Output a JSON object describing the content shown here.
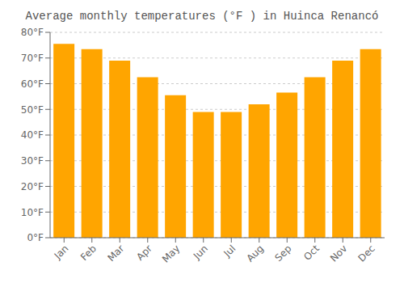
{
  "chart_data": {
    "type": "bar",
    "title": "Average monthly temperatures (°F ) in Huinca Renancó",
    "categories": [
      "Jan",
      "Feb",
      "Mar",
      "Apr",
      "May",
      "Jun",
      "Jul",
      "Aug",
      "Sep",
      "Oct",
      "Nov",
      "Dec"
    ],
    "values": [
      75.5,
      73.5,
      69.0,
      62.5,
      55.5,
      49.0,
      49.0,
      52.0,
      56.5,
      62.5,
      69.0,
      73.5
    ],
    "color": "#FFA500",
    "ylim": [
      0,
      80
    ],
    "yticks": [
      {
        "value": 0,
        "label": "0°F"
      },
      {
        "value": 10,
        "label": "10°F"
      },
      {
        "value": 20,
        "label": "20°F"
      },
      {
        "value": 30,
        "label": "30°F"
      },
      {
        "value": 40,
        "label": "40°F"
      },
      {
        "value": 50,
        "label": "50°F"
      },
      {
        "value": 60,
        "label": "60°F"
      },
      {
        "value": 70,
        "label": "70°F"
      },
      {
        "value": 80,
        "label": "80°F"
      }
    ],
    "grid": true
  }
}
